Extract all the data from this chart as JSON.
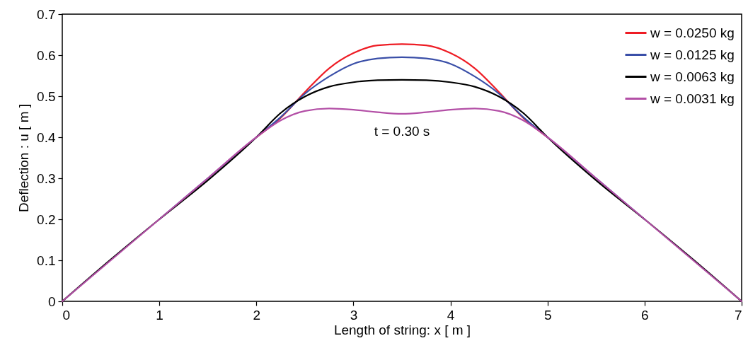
{
  "chart_data": {
    "type": "line",
    "xlabel": "Length of   string: x [ m ]",
    "ylabel": "Deflection : u [ m ]",
    "x": [
      0,
      0.5,
      1,
      1.5,
      2,
      2.25,
      2.5,
      2.75,
      3,
      3.25,
      3.5,
      3.75,
      4,
      4.25,
      4.5,
      4.75,
      5,
      5.5,
      6,
      6.5,
      7
    ],
    "series": [
      {
        "name": "w = 0.0250 kg",
        "color": "#ee1c24",
        "values": [
          null,
          null,
          null,
          null,
          0.4,
          0.447,
          0.51,
          0.568,
          0.605,
          0.624,
          0.627,
          0.624,
          0.605,
          0.568,
          0.51,
          0.447,
          0.4,
          null,
          null,
          null,
          null
        ]
      },
      {
        "name": "w = 0.0125 kg",
        "color": "#3a4fa8",
        "values": [
          null,
          null,
          0.2,
          0.3,
          0.4,
          0.449,
          0.506,
          0.548,
          0.579,
          0.592,
          0.595,
          0.592,
          0.579,
          0.548,
          0.506,
          0.449,
          0.4,
          0.3,
          0.2,
          null,
          null
        ]
      },
      {
        "name": "w = 0.0063 kg",
        "color": "#000000",
        "values": [
          0,
          0.102,
          0.2,
          0.295,
          0.4,
          0.459,
          0.499,
          0.523,
          0.534,
          0.539,
          0.54,
          0.539,
          0.534,
          0.523,
          0.499,
          0.459,
          0.4,
          0.295,
          0.2,
          0.102,
          0
        ]
      },
      {
        "name": "w = 0.0031 kg",
        "color": "#b34fa6",
        "values": [
          0,
          0.1,
          0.2,
          0.3,
          0.4,
          0.441,
          0.464,
          0.47,
          0.467,
          0.461,
          0.457,
          0.461,
          0.467,
          0.47,
          0.464,
          0.441,
          0.4,
          0.3,
          0.2,
          0.1,
          0
        ]
      }
    ],
    "xlim": [
      0,
      7
    ],
    "xticks": [
      0,
      1,
      2,
      3,
      4,
      5,
      6,
      7
    ],
    "ylim": [
      0,
      0.7
    ],
    "yticks": [
      0,
      0.1,
      0.2,
      0.3,
      0.4,
      0.5,
      0.6,
      0.7
    ],
    "annotations": [
      "t = 0.30 s"
    ],
    "legend": "top right",
    "grid": false,
    "marker": "none",
    "line_style": "solid"
  }
}
